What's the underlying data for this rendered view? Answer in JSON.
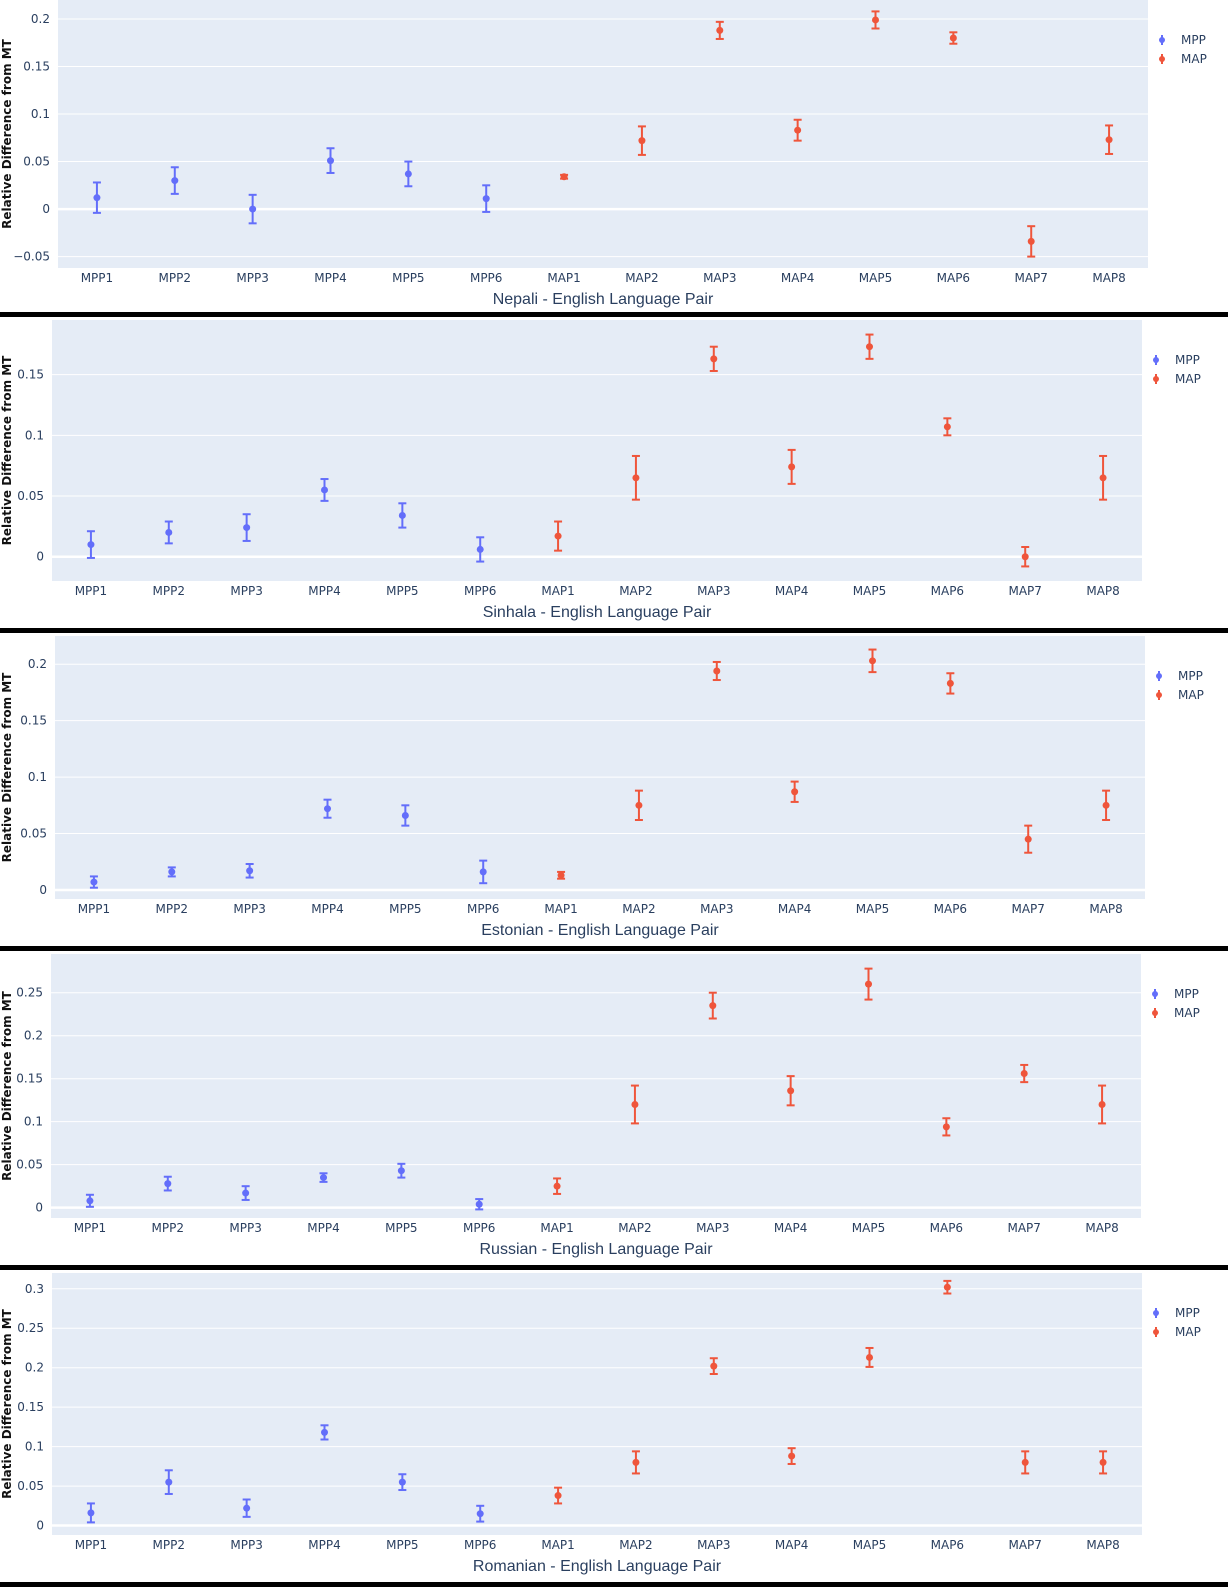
{
  "chart_data": [
    {
      "type": "scatter",
      "title": "",
      "xlabel": "Nepali - English Language Pair",
      "ylabel": "Relative Difference from MT",
      "ylim": [
        -0.062,
        0.22
      ],
      "yticks": [
        {
          "v": -0.05,
          "label": "−0.05"
        },
        {
          "v": 0,
          "label": "0"
        },
        {
          "v": 0.05,
          "label": "0.05"
        },
        {
          "v": 0.1,
          "label": "0.1"
        },
        {
          "v": 0.15,
          "label": "0.15"
        },
        {
          "v": 0.2,
          "label": "0.2"
        }
      ],
      "categories": [
        "MPP1",
        "MPP2",
        "MPP3",
        "MPP4",
        "MPP5",
        "MPP6",
        "MAP1",
        "MAP2",
        "MAP3",
        "MAP4",
        "MAP5",
        "MAP6",
        "MAP7",
        "MAP8"
      ],
      "grid": true,
      "legend_position": "top-right",
      "series": [
        {
          "name": "MPP",
          "color": "#636efa",
          "x": [
            "MPP1",
            "MPP2",
            "MPP3",
            "MPP4",
            "MPP5",
            "MPP6"
          ],
          "y": [
            0.012,
            0.03,
            0.0,
            0.051,
            0.037,
            0.011
          ],
          "error": [
            0.016,
            0.014,
            0.015,
            0.013,
            0.013,
            0.014
          ]
        },
        {
          "name": "MAP",
          "color": "#ef553b",
          "x": [
            "MAP1",
            "MAP2",
            "MAP3",
            "MAP4",
            "MAP5",
            "MAP6",
            "MAP7",
            "MAP8"
          ],
          "y": [
            0.034,
            0.072,
            0.188,
            0.083,
            0.199,
            0.18,
            -0.034,
            0.073
          ],
          "error": [
            0.002,
            0.015,
            0.009,
            0.011,
            0.009,
            0.006,
            0.016,
            0.015
          ]
        }
      ]
    },
    {
      "type": "scatter",
      "title": "",
      "xlabel": "Sinhala - English Language Pair",
      "ylabel": "Relative Difference from MT",
      "ylim": [
        -0.02,
        0.195
      ],
      "yticks": [
        {
          "v": 0,
          "label": "0"
        },
        {
          "v": 0.05,
          "label": "0.05"
        },
        {
          "v": 0.1,
          "label": "0.1"
        },
        {
          "v": 0.15,
          "label": "0.15"
        }
      ],
      "categories": [
        "MPP1",
        "MPP2",
        "MPP3",
        "MPP4",
        "MPP5",
        "MPP6",
        "MAP1",
        "MAP2",
        "MAP3",
        "MAP4",
        "MAP5",
        "MAP6",
        "MAP7",
        "MAP8"
      ],
      "grid": true,
      "legend_position": "top-right",
      "series": [
        {
          "name": "MPP",
          "color": "#636efa",
          "x": [
            "MPP1",
            "MPP2",
            "MPP3",
            "MPP4",
            "MPP5",
            "MPP6"
          ],
          "y": [
            0.01,
            0.02,
            0.024,
            0.055,
            0.034,
            0.006
          ],
          "error": [
            0.011,
            0.009,
            0.011,
            0.009,
            0.01,
            0.01
          ]
        },
        {
          "name": "MAP",
          "color": "#ef553b",
          "x": [
            "MAP1",
            "MAP2",
            "MAP3",
            "MAP4",
            "MAP5",
            "MAP6",
            "MAP7",
            "MAP8"
          ],
          "y": [
            0.017,
            0.065,
            0.163,
            0.074,
            0.173,
            0.107,
            0.0,
            0.065
          ],
          "error": [
            0.012,
            0.018,
            0.01,
            0.014,
            0.01,
            0.007,
            0.008,
            0.018
          ]
        }
      ]
    },
    {
      "type": "scatter",
      "title": "",
      "xlabel": "Estonian - English Language Pair",
      "ylabel": "Relative Difference from MT",
      "ylim": [
        -0.008,
        0.225
      ],
      "yticks": [
        {
          "v": 0,
          "label": "0"
        },
        {
          "v": 0.05,
          "label": "0.05"
        },
        {
          "v": 0.1,
          "label": "0.1"
        },
        {
          "v": 0.15,
          "label": "0.15"
        },
        {
          "v": 0.2,
          "label": "0.2"
        }
      ],
      "categories": [
        "MPP1",
        "MPP2",
        "MPP3",
        "MPP4",
        "MPP5",
        "MPP6",
        "MAP1",
        "MAP2",
        "MAP3",
        "MAP4",
        "MAP5",
        "MAP6",
        "MAP7",
        "MAP8"
      ],
      "grid": true,
      "legend_position": "top-right",
      "series": [
        {
          "name": "MPP",
          "color": "#636efa",
          "x": [
            "MPP1",
            "MPP2",
            "MPP3",
            "MPP4",
            "MPP5",
            "MPP6"
          ],
          "y": [
            0.007,
            0.016,
            0.017,
            0.072,
            0.066,
            0.016
          ],
          "error": [
            0.005,
            0.004,
            0.006,
            0.008,
            0.009,
            0.01
          ]
        },
        {
          "name": "MAP",
          "color": "#ef553b",
          "x": [
            "MAP1",
            "MAP2",
            "MAP3",
            "MAP4",
            "MAP5",
            "MAP6",
            "MAP7",
            "MAP8"
          ],
          "y": [
            0.013,
            0.075,
            0.194,
            0.087,
            0.203,
            0.183,
            0.045,
            0.075
          ],
          "error": [
            0.003,
            0.013,
            0.008,
            0.009,
            0.01,
            0.009,
            0.012,
            0.013
          ]
        }
      ]
    },
    {
      "type": "scatter",
      "title": "",
      "xlabel": "Russian - English Language Pair",
      "ylabel": "Relative Difference from MT",
      "ylim": [
        -0.012,
        0.295
      ],
      "yticks": [
        {
          "v": 0,
          "label": "0"
        },
        {
          "v": 0.05,
          "label": "0.05"
        },
        {
          "v": 0.1,
          "label": "0.1"
        },
        {
          "v": 0.15,
          "label": "0.15"
        },
        {
          "v": 0.2,
          "label": "0.2"
        },
        {
          "v": 0.25,
          "label": "0.25"
        }
      ],
      "categories": [
        "MPP1",
        "MPP2",
        "MPP3",
        "MPP4",
        "MPP5",
        "MPP6",
        "MAP1",
        "MAP2",
        "MAP3",
        "MAP4",
        "MAP5",
        "MAP6",
        "MAP7",
        "MAP8"
      ],
      "grid": true,
      "legend_position": "top-right",
      "series": [
        {
          "name": "MPP",
          "color": "#636efa",
          "x": [
            "MPP1",
            "MPP2",
            "MPP3",
            "MPP4",
            "MPP5",
            "MPP6"
          ],
          "y": [
            0.008,
            0.028,
            0.017,
            0.035,
            0.043,
            0.004
          ],
          "error": [
            0.007,
            0.008,
            0.008,
            0.005,
            0.008,
            0.006
          ]
        },
        {
          "name": "MAP",
          "color": "#ef553b",
          "x": [
            "MAP1",
            "MAP2",
            "MAP3",
            "MAP4",
            "MAP5",
            "MAP6",
            "MAP7",
            "MAP8"
          ],
          "y": [
            0.025,
            0.12,
            0.235,
            0.136,
            0.26,
            0.094,
            0.156,
            0.12
          ],
          "error": [
            0.009,
            0.022,
            0.015,
            0.017,
            0.018,
            0.01,
            0.01,
            0.022
          ]
        }
      ]
    },
    {
      "type": "scatter",
      "title": "",
      "xlabel": "Romanian - English Language Pair",
      "ylabel": "Relative Difference from MT",
      "ylim": [
        -0.012,
        0.32
      ],
      "yticks": [
        {
          "v": 0,
          "label": "0"
        },
        {
          "v": 0.05,
          "label": "0.05"
        },
        {
          "v": 0.1,
          "label": "0.1"
        },
        {
          "v": 0.15,
          "label": "0.15"
        },
        {
          "v": 0.2,
          "label": "0.2"
        },
        {
          "v": 0.25,
          "label": "0.25"
        },
        {
          "v": 0.3,
          "label": "0.3"
        }
      ],
      "categories": [
        "MPP1",
        "MPP2",
        "MPP3",
        "MPP4",
        "MPP5",
        "MPP6",
        "MAP1",
        "MAP2",
        "MAP3",
        "MAP4",
        "MAP5",
        "MAP6",
        "MAP7",
        "MAP8"
      ],
      "grid": true,
      "legend_position": "top-right",
      "series": [
        {
          "name": "MPP",
          "color": "#636efa",
          "x": [
            "MPP1",
            "MPP2",
            "MPP3",
            "MPP4",
            "MPP5",
            "MPP6"
          ],
          "y": [
            0.016,
            0.055,
            0.022,
            0.118,
            0.055,
            0.015
          ],
          "error": [
            0.012,
            0.015,
            0.011,
            0.009,
            0.01,
            0.01
          ]
        },
        {
          "name": "MAP",
          "color": "#ef553b",
          "x": [
            "MAP1",
            "MAP2",
            "MAP3",
            "MAP4",
            "MAP5",
            "MAP6",
            "MAP7",
            "MAP8"
          ],
          "y": [
            0.038,
            0.08,
            0.202,
            0.088,
            0.213,
            0.302,
            0.08,
            0.08
          ],
          "error": [
            0.01,
            0.014,
            0.01,
            0.01,
            0.012,
            0.008,
            0.014,
            0.014
          ]
        }
      ]
    }
  ]
}
